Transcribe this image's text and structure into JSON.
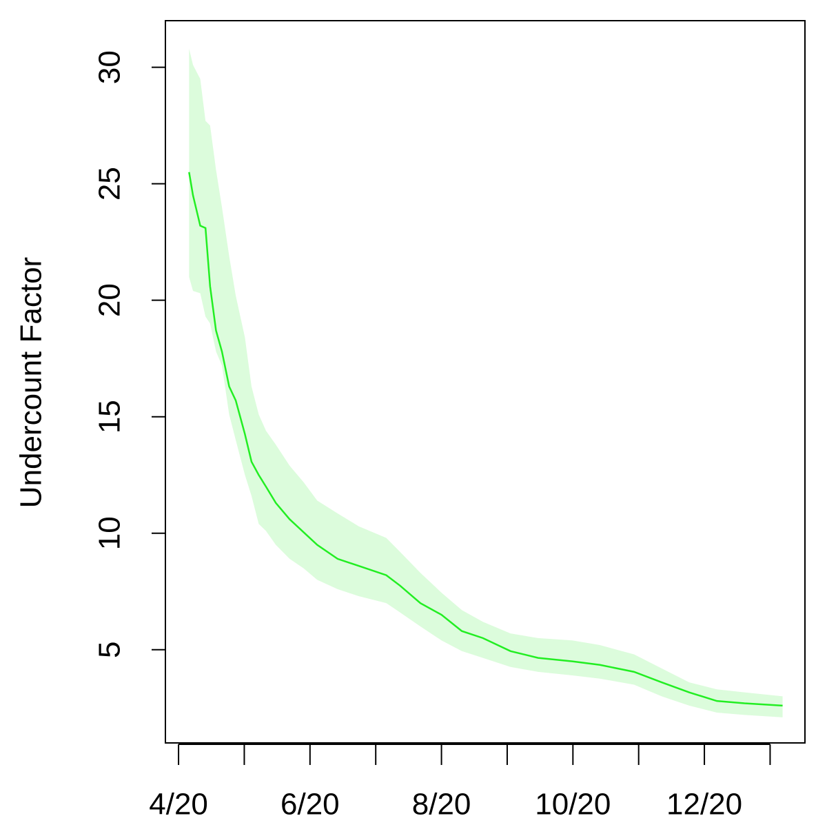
{
  "chart_data": {
    "type": "line",
    "ylabel": "Undercount Factor",
    "x": [
      4.16,
      4.22,
      4.33,
      4.41,
      4.48,
      4.57,
      4.66,
      4.77,
      4.87,
      5.01,
      5.11,
      5.22,
      5.33,
      5.48,
      5.69,
      5.9,
      6.11,
      6.42,
      6.74,
      7.16,
      7.37,
      7.68,
      8.0,
      8.31,
      8.63,
      9.05,
      9.47,
      9.99,
      10.41,
      10.93,
      11.35,
      11.77,
      12.19,
      12.61,
      13.19
    ],
    "values": [
      25.5,
      24.5,
      23.2,
      23.1,
      20.6,
      18.7,
      17.8,
      16.3,
      15.7,
      14.25,
      13.07,
      12.5,
      12.0,
      11.3,
      10.6,
      10.05,
      9.5,
      8.9,
      8.6,
      8.2,
      7.75,
      7.0,
      6.5,
      5.8,
      5.5,
      4.94,
      4.65,
      4.5,
      4.35,
      4.05,
      3.6,
      3.17,
      2.8,
      2.7,
      2.6
    ],
    "upper": [
      30.8,
      30.1,
      29.5,
      27.7,
      27.5,
      25.6,
      24.0,
      21.9,
      20.2,
      18.4,
      16.3,
      15.1,
      14.4,
      13.8,
      12.9,
      12.2,
      11.4,
      10.85,
      10.3,
      9.8,
      9.2,
      8.3,
      7.45,
      6.7,
      6.2,
      5.7,
      5.5,
      5.4,
      5.2,
      4.8,
      4.2,
      3.6,
      3.3,
      3.17,
      3.0
    ],
    "lower": [
      21.0,
      20.4,
      20.3,
      19.3,
      19.0,
      17.8,
      17.2,
      15.1,
      14.0,
      12.5,
      11.6,
      10.4,
      10.1,
      9.5,
      8.9,
      8.5,
      8.0,
      7.6,
      7.3,
      7.0,
      6.6,
      6.0,
      5.4,
      4.94,
      4.65,
      4.26,
      4.05,
      3.9,
      3.76,
      3.5,
      3.0,
      2.6,
      2.3,
      2.2,
      2.1
    ],
    "color": "#22ee22",
    "band_color": "#dcfcdc",
    "xlim": [
      3.8,
      13.53
    ],
    "xticks": [
      {
        "value": 4,
        "label": "4/20"
      },
      {
        "value": 5,
        "label": null
      },
      {
        "value": 6,
        "label": "6/20"
      },
      {
        "value": 7,
        "label": null
      },
      {
        "value": 8,
        "label": "8/20"
      },
      {
        "value": 9,
        "label": null
      },
      {
        "value": 10,
        "label": "10/20"
      },
      {
        "value": 11,
        "label": null
      },
      {
        "value": 12,
        "label": "12/20"
      },
      {
        "value": 13,
        "label": null
      }
    ],
    "ylim": [
      1,
      32
    ],
    "yticks": [
      5,
      10,
      15,
      20,
      25,
      30
    ]
  }
}
